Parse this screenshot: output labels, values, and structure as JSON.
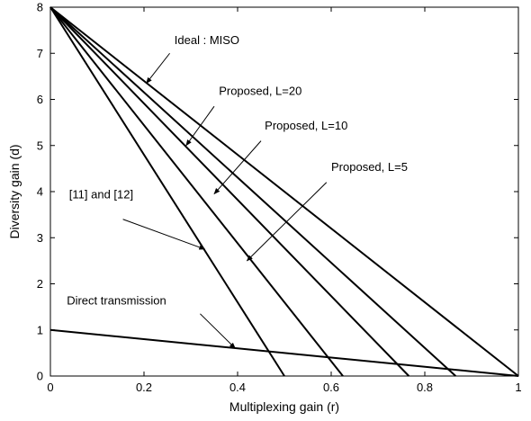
{
  "chart_data": {
    "type": "line",
    "xlabel": "Multiplexing gain (r)",
    "ylabel": "Diversity gain (d)",
    "xlim": [
      0,
      1
    ],
    "ylim": [
      0,
      8
    ],
    "xticks": [
      "0",
      "0.2",
      "0.4",
      "0.6",
      "0.8",
      "1"
    ],
    "yticks": [
      "0",
      "1",
      "2",
      "3",
      "4",
      "5",
      "6",
      "7",
      "8"
    ],
    "grid": false,
    "legend": "none",
    "line_color": "#000000",
    "series": [
      {
        "key": "ideal-miso",
        "points": [
          [
            0,
            8
          ],
          [
            1,
            0
          ]
        ]
      },
      {
        "key": "proposed-l20",
        "points": [
          [
            0,
            8
          ],
          [
            0.866,
            0
          ]
        ]
      },
      {
        "key": "proposed-l10",
        "points": [
          [
            0,
            8
          ],
          [
            0.766,
            0
          ]
        ]
      },
      {
        "key": "proposed-l5",
        "points": [
          [
            0,
            8
          ],
          [
            0.625,
            0
          ]
        ]
      },
      {
        "key": "refs-11-12",
        "points": [
          [
            0,
            8
          ],
          [
            0.5,
            0
          ]
        ]
      },
      {
        "key": "direct-transmission",
        "points": [
          [
            0,
            1
          ],
          [
            1,
            0
          ]
        ]
      }
    ],
    "annotations": [
      {
        "text": "Ideal : MISO",
        "text_at": [
          0.265,
          7.2
        ],
        "arrow_from": [
          0.255,
          7.0
        ],
        "arrow_to": [
          0.205,
          6.35
        ]
      },
      {
        "text": "Proposed, L=20",
        "text_at": [
          0.36,
          6.1
        ],
        "arrow_from": [
          0.35,
          5.85
        ],
        "arrow_to": [
          0.29,
          5.0
        ]
      },
      {
        "text": "Proposed, L=10",
        "text_at": [
          0.458,
          5.35
        ],
        "arrow_from": [
          0.45,
          5.1
        ],
        "arrow_to": [
          0.35,
          3.95
        ]
      },
      {
        "text": "Proposed, L=5",
        "text_at": [
          0.6,
          4.45
        ],
        "arrow_from": [
          0.59,
          4.2
        ],
        "arrow_to": [
          0.42,
          2.5
        ]
      },
      {
        "text": "[11] and [12]",
        "text_at": [
          0.04,
          3.85
        ],
        "arrow_from": [
          0.155,
          3.4
        ],
        "arrow_to": [
          0.33,
          2.75
        ]
      },
      {
        "text": "Direct transmission",
        "text_at": [
          0.035,
          1.55
        ],
        "arrow_from": [
          0.32,
          1.35
        ],
        "arrow_to": [
          0.395,
          0.6
        ]
      }
    ]
  }
}
